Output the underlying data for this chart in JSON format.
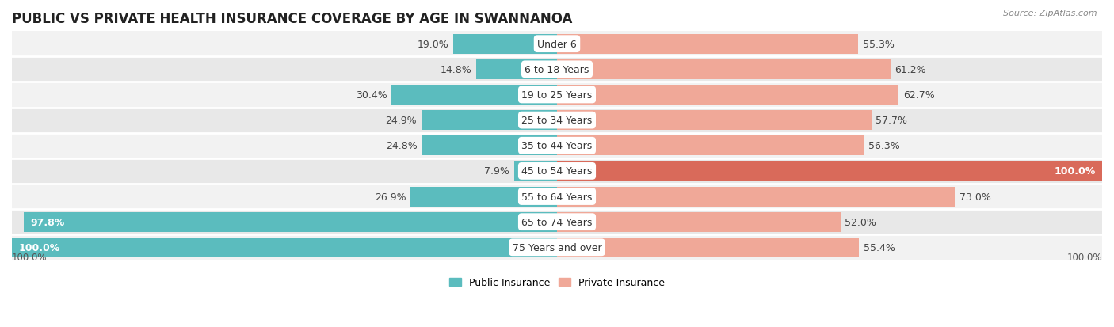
{
  "title": "PUBLIC VS PRIVATE HEALTH INSURANCE COVERAGE BY AGE IN SWANNANOA",
  "source": "Source: ZipAtlas.com",
  "categories": [
    "Under 6",
    "6 to 18 Years",
    "19 to 25 Years",
    "25 to 34 Years",
    "35 to 44 Years",
    "45 to 54 Years",
    "55 to 64 Years",
    "65 to 74 Years",
    "75 Years and over"
  ],
  "public_values": [
    19.0,
    14.8,
    30.4,
    24.9,
    24.8,
    7.9,
    26.9,
    97.8,
    100.0
  ],
  "private_values": [
    55.3,
    61.2,
    62.7,
    57.7,
    56.3,
    100.0,
    73.0,
    52.0,
    55.4
  ],
  "public_color": "#5bbcbe",
  "private_color_normal": "#f0a898",
  "private_color_highlight": "#d96a5a",
  "row_bg_even": "#f2f2f2",
  "row_bg_odd": "#e8e8e8",
  "separator_color": "#ffffff",
  "title_fontsize": 12,
  "source_fontsize": 8,
  "label_fontsize": 9,
  "legend_fontsize": 9,
  "axis_label_fontsize": 8.5,
  "max_value": 100.0,
  "figsize": [
    14.06,
    4.14
  ],
  "dpi": 100
}
